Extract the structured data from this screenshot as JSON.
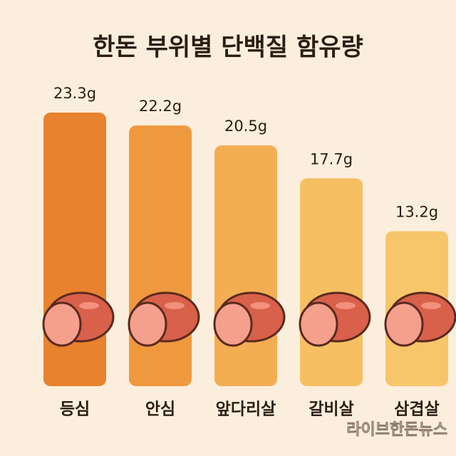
{
  "chart_data": {
    "type": "bar",
    "title": "한돈 부위별 단백질 함유량",
    "categories": [
      "등심",
      "안심",
      "앞다리살",
      "갈비살",
      "삼겹살"
    ],
    "values": [
      23.3,
      22.2,
      20.5,
      17.7,
      13.2
    ],
    "value_labels": [
      "23.3g",
      "22.2g",
      "20.5g",
      "17.7g",
      "13.2g"
    ],
    "colors": [
      "#e8822e",
      "#ef993f",
      "#f3ad52",
      "#f6bf62",
      "#f7c66b"
    ],
    "source": "라이브한돈뉴스"
  }
}
